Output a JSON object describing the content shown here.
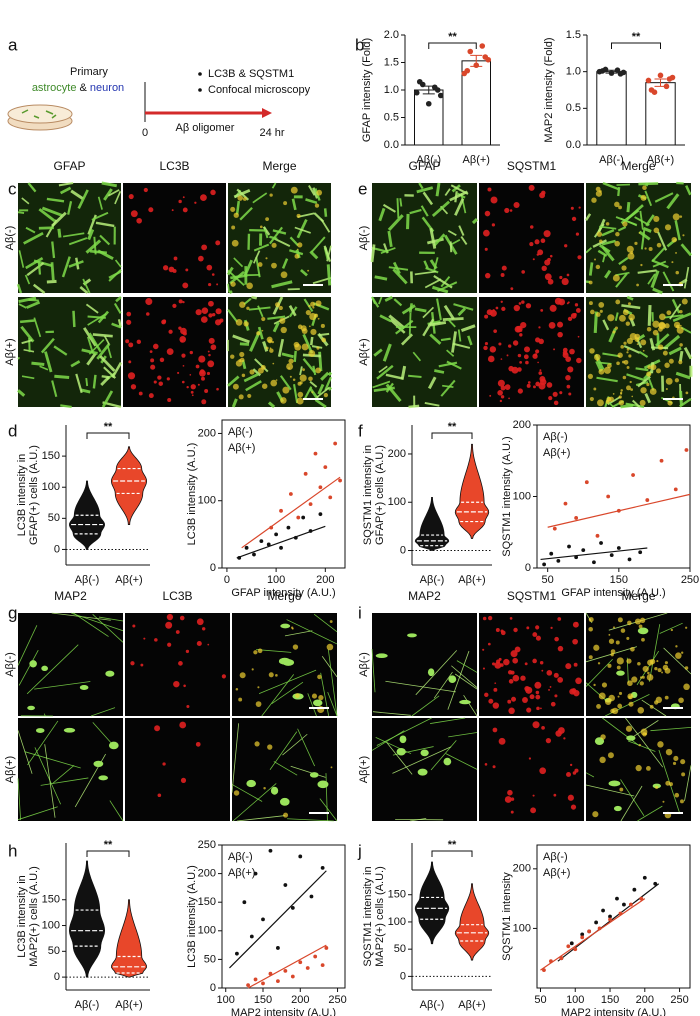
{
  "panel_labels": [
    "a",
    "b",
    "c",
    "d",
    "e",
    "f",
    "g",
    "h",
    "i",
    "j"
  ],
  "schematic": {
    "line1": "Primary",
    "cell_a": "astrocyte",
    "joiner": "&",
    "cell_b": "neuron",
    "bullets": [
      "LC3B & SQSTM1",
      "Confocal microscopy"
    ],
    "time_start": "0",
    "treatment": "Aβ oligomer",
    "time_end": "24 hr"
  },
  "images": [
    {
      "headers": [
        "GFAP",
        "LC3B",
        "Merge"
      ],
      "rows": [
        "Aβ(-)",
        "Aβ(+)"
      ]
    },
    {
      "headers": [
        "GFAP",
        "SQSTM1",
        "Merge"
      ],
      "rows": [
        "Aβ(-)",
        "Aβ(+)"
      ]
    },
    {
      "headers": [
        "MAP2",
        "LC3B",
        "Merge"
      ],
      "rows": [
        "Aβ(-)",
        "Aβ(+)"
      ]
    },
    {
      "headers": [
        "MAP2",
        "SQSTM1",
        "Merge"
      ],
      "rows": [
        "Aβ(-)",
        "Aβ(+)"
      ]
    }
  ],
  "chart_data": [
    {
      "type": "bar",
      "ylabel": "GFAP intensity (Fold)",
      "categories": [
        "Aβ(-)",
        "Aβ(+)"
      ],
      "values": [
        1.0,
        1.53
      ],
      "errors": [
        0.07,
        0.1
      ],
      "points": [
        [
          0.95,
          1.1,
          0.75,
          1.05,
          0.9,
          1.15,
          1.0
        ],
        [
          1.3,
          1.7,
          1.45,
          1.8,
          1.55,
          1.35,
          1.6
        ]
      ],
      "colors": [
        "#222222",
        "#d9472b"
      ],
      "ylim": [
        0,
        2
      ],
      "yticks": [
        {
          "value": 0,
          "label": "0.0"
        },
        0.5,
        {
          "value": 1,
          "label": "1.0"
        },
        1.5,
        {
          "value": 2,
          "label": "2.0"
        }
      ],
      "annotation": "**"
    },
    {
      "type": "bar",
      "ylabel": "MAP2 intensity (Fold)",
      "categories": [
        "Aβ(-)",
        "Aβ(+)"
      ],
      "values": [
        1.0,
        0.85
      ],
      "errors": [
        0.02,
        0.05
      ],
      "points": [
        [
          1.0,
          1.03,
          0.98,
          1.02,
          0.99,
          1.01,
          0.97
        ],
        [
          0.88,
          0.72,
          0.95,
          0.8,
          0.92,
          0.75,
          0.9
        ]
      ],
      "colors": [
        "#222222",
        "#d9472b"
      ],
      "ylim": [
        0,
        1.5
      ],
      "yticks": [
        {
          "value": 0,
          "label": "0.0"
        },
        0.5,
        {
          "value": 1,
          "label": "1.0"
        },
        1.5
      ],
      "annotation": "**"
    },
    {
      "type": "violin",
      "ylabel": [
        "LC3B intensity in",
        "GFAP(+) cells (A.U.)"
      ],
      "categories": [
        "Aβ(-)",
        "Aβ(+)"
      ],
      "stats": [
        {
          "min": 0,
          "q1": 25,
          "median": 40,
          "q3": 55,
          "max": 110
        },
        {
          "min": 40,
          "q1": 90,
          "median": 110,
          "q3": 130,
          "max": 165
        }
      ],
      "colors": [
        "#111111",
        "#e8472a"
      ],
      "ylim": [
        -25,
        200
      ],
      "yticks": [
        0,
        50,
        100,
        150
      ],
      "reference_line": 0,
      "annotation": "**"
    },
    {
      "type": "scatter",
      "xlabel": "GFAP intensity (A.U.)",
      "ylabel": "LC3B intensity (A.U.)",
      "xlim": [
        -10,
        240
      ],
      "xticks": [
        0,
        100,
        200
      ],
      "ylim": [
        0,
        220
      ],
      "yticks": [
        0,
        100,
        200
      ],
      "legend": "upper left",
      "series": [
        {
          "name": "Aβ(-)",
          "color": "#111111",
          "x": [
            25,
            40,
            55,
            70,
            85,
            100,
            110,
            125,
            140,
            155,
            170,
            190
          ],
          "y": [
            15,
            30,
            20,
            40,
            35,
            50,
            30,
            60,
            45,
            75,
            55,
            80
          ],
          "fit": {
            "x": [
              20,
              200
            ],
            "y": [
              15,
              62
            ]
          }
        },
        {
          "name": "Aβ(+)",
          "color": "#d9472b",
          "x": [
            90,
            110,
            130,
            145,
            160,
            170,
            180,
            190,
            200,
            210,
            220,
            230
          ],
          "y": [
            60,
            85,
            110,
            75,
            140,
            95,
            170,
            120,
            150,
            105,
            185,
            130
          ],
          "fit": {
            "x": [
              30,
              230
            ],
            "y": [
              30,
              135
            ]
          }
        }
      ]
    },
    {
      "type": "violin",
      "ylabel": [
        "SQSTM1 intensity in",
        "GFAP(+) cells (A.U.)"
      ],
      "categories": [
        "Aβ(-)",
        "Aβ(+)"
      ],
      "stats": [
        {
          "min": 0,
          "q1": 10,
          "median": 20,
          "q3": 32,
          "max": 110
        },
        {
          "min": 25,
          "q1": 60,
          "median": 80,
          "q3": 100,
          "max": 220
        }
      ],
      "colors": [
        "#111111",
        "#e8472a"
      ],
      "ylim": [
        -30,
        260
      ],
      "yticks": [
        0,
        100,
        200
      ],
      "reference_line": 0,
      "annotation": "**"
    },
    {
      "type": "scatter",
      "xlabel": "GFAP intensity (A.U.)",
      "ylabel": "SQSTM1 intensity (A.U.)",
      "xlim": [
        35,
        250
      ],
      "xticks": [
        50,
        150,
        250
      ],
      "ylim": [
        0,
        200
      ],
      "yticks": [
        0,
        100,
        200
      ],
      "legend": "upper left",
      "series": [
        {
          "name": "Aβ(-)",
          "color": "#111111",
          "x": [
            45,
            55,
            65,
            80,
            90,
            100,
            115,
            125,
            140,
            150,
            165,
            180
          ],
          "y": [
            5,
            20,
            10,
            30,
            15,
            25,
            8,
            35,
            18,
            28,
            12,
            22
          ],
          "fit": {
            "x": [
              40,
              190
            ],
            "y": [
              12,
              28
            ]
          }
        },
        {
          "name": "Aβ(+)",
          "color": "#d9472b",
          "x": [
            60,
            75,
            90,
            105,
            120,
            135,
            150,
            170,
            190,
            210,
            230,
            245
          ],
          "y": [
            55,
            90,
            70,
            120,
            45,
            100,
            80,
            130,
            95,
            150,
            110,
            165
          ],
          "fit": {
            "x": [
              50,
              250
            ],
            "y": [
              57,
              103
            ]
          }
        }
      ]
    },
    {
      "type": "violin",
      "ylabel": [
        "LC3B intensity in",
        "MAP2(+) cells (A.U.)"
      ],
      "categories": [
        "Aβ(-)",
        "Aβ(+)"
      ],
      "stats": [
        {
          "min": 0,
          "q1": 60,
          "median": 90,
          "q3": 130,
          "max": 225
        },
        {
          "min": 0,
          "q1": 8,
          "median": 20,
          "q3": 40,
          "max": 150
        }
      ],
      "colors": [
        "#111111",
        "#e8472a"
      ],
      "ylim": [
        -25,
        260
      ],
      "yticks": [
        0,
        50,
        100,
        150
      ],
      "reference_line": 0,
      "annotation": "**"
    },
    {
      "type": "scatter",
      "xlabel": "MAP2 intensity (A.U.)",
      "ylabel": "LC3B intensity (A.U.)",
      "xlim": [
        95,
        260
      ],
      "xticks": [
        100,
        150,
        200,
        250
      ],
      "ylim": [
        0,
        250
      ],
      "yticks": [
        0,
        50,
        100,
        150,
        200,
        250
      ],
      "legend": "upper left",
      "series": [
        {
          "name": "Aβ(-)",
          "color": "#111111",
          "x": [
            115,
            125,
            135,
            140,
            150,
            160,
            170,
            180,
            190,
            200,
            215,
            230
          ],
          "y": [
            60,
            150,
            90,
            200,
            120,
            240,
            70,
            180,
            140,
            230,
            160,
            210
          ],
          "fit": {
            "x": [
              105,
              235
            ],
            "y": [
              35,
              205
            ]
          }
        },
        {
          "name": "Aβ(+)",
          "color": "#d9472b",
          "x": [
            130,
            140,
            150,
            160,
            170,
            180,
            190,
            200,
            210,
            220,
            230,
            235
          ],
          "y": [
            5,
            15,
            8,
            25,
            12,
            30,
            20,
            45,
            35,
            55,
            40,
            70
          ],
          "fit": {
            "x": [
              130,
              235
            ],
            "y": [
              0,
              75
            ]
          }
        }
      ]
    },
    {
      "type": "violin",
      "ylabel": [
        "SQSTM1 intensity in",
        "MAP2(+) cells (A.U.)"
      ],
      "categories": [
        "Aβ(-)",
        "Aβ(+)"
      ],
      "stats": [
        {
          "min": 60,
          "q1": 105,
          "median": 125,
          "q3": 145,
          "max": 210
        },
        {
          "min": 30,
          "q1": 65,
          "median": 80,
          "q3": 95,
          "max": 170
        }
      ],
      "colors": [
        "#111111",
        "#e8472a"
      ],
      "ylim": [
        -25,
        245
      ],
      "yticks": [
        0,
        50,
        100,
        150
      ],
      "reference_line": 0,
      "annotation": "**"
    },
    {
      "type": "scatter",
      "xlabel": "MAP2 intensity (A.U.)",
      "ylabel": "SQSTM1 intensity",
      "xlim": [
        45,
        265
      ],
      "xticks": [
        50,
        100,
        150,
        200,
        250
      ],
      "ylim": [
        0,
        240
      ],
      "yticks": [
        100,
        200
      ],
      "legend": "upper left",
      "series": [
        {
          "name": "Aβ(-)",
          "color": "#111111",
          "x": [
            80,
            95,
            110,
            120,
            130,
            140,
            150,
            160,
            170,
            185,
            200,
            215
          ],
          "y": [
            50,
            75,
            90,
            95,
            110,
            130,
            120,
            150,
            140,
            165,
            185,
            175
          ],
          "fit": {
            "x": [
              75,
              220
            ],
            "y": [
              45,
              175
            ]
          }
        },
        {
          "name": "Aβ(+)",
          "color": "#d9472b",
          "x": [
            55,
            65,
            80,
            90,
            100,
            110,
            120,
            135,
            150,
            165,
            180,
            195
          ],
          "y": [
            30,
            45,
            50,
            70,
            65,
            85,
            95,
            100,
            115,
            125,
            140,
            150
          ],
          "fit": {
            "x": [
              50,
              200
            ],
            "y": [
              30,
              150
            ]
          }
        }
      ]
    }
  ]
}
